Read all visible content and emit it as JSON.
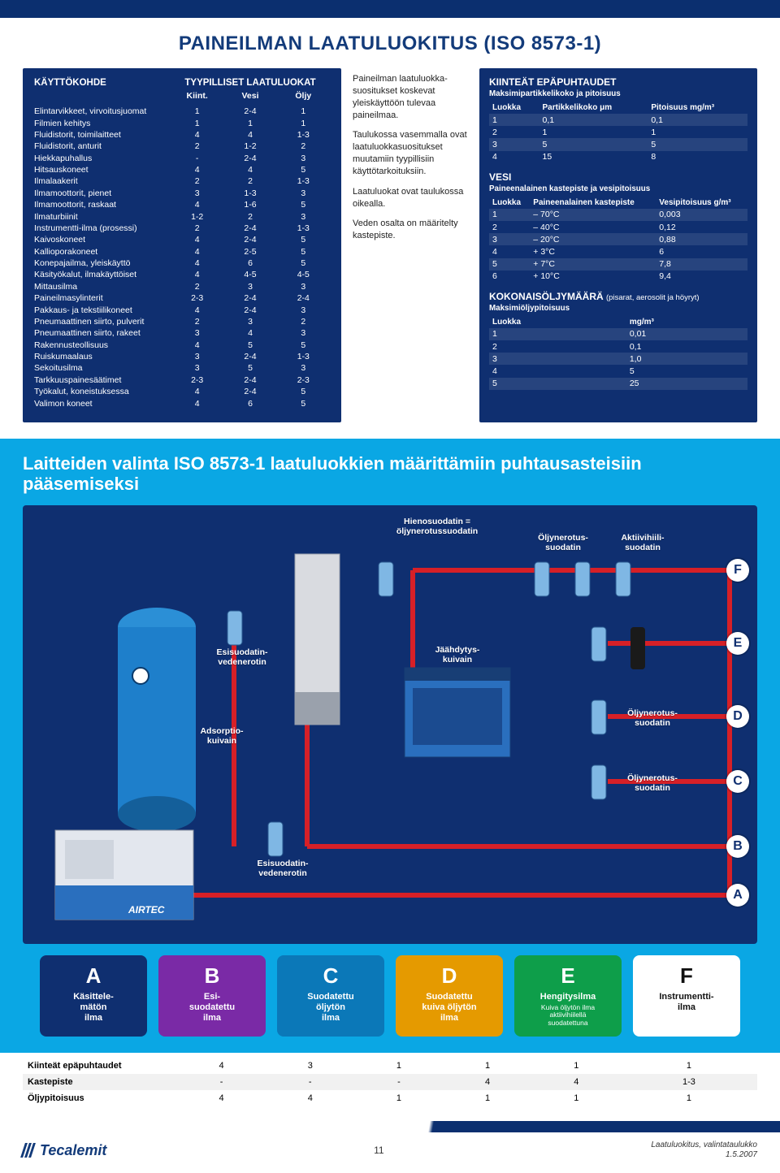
{
  "title": "PAINEILMAN LAATULUOKITUS (ISO 8573-1)",
  "usage_table": {
    "header_use": "KÄYTTÖKOHDE",
    "header_group": "TYYPILLISET LAATULUOKAT",
    "sub": [
      "Kiint.",
      "Vesi",
      "Öljy"
    ],
    "rows": [
      [
        "Elintarvikkeet, virvoitusjuomat",
        "1",
        "2-4",
        "1"
      ],
      [
        "Filmien kehitys",
        "1",
        "1",
        "1"
      ],
      [
        "Fluidistorit, toimilaitteet",
        "4",
        "4",
        "1-3"
      ],
      [
        "Fluidistorit, anturit",
        "2",
        "1-2",
        "2"
      ],
      [
        "Hiekkapuhallus",
        "-",
        "2-4",
        "3"
      ],
      [
        "Hitsauskoneet",
        "4",
        "4",
        "5"
      ],
      [
        "Ilmalaakerit",
        "2",
        "2",
        "1-3"
      ],
      [
        "Ilmamoottorit, pienet",
        "3",
        "1-3",
        "3"
      ],
      [
        "Ilmamoottorit, raskaat",
        "4",
        "1-6",
        "5"
      ],
      [
        "Ilmaturbiinit",
        "1-2",
        "2",
        "3"
      ],
      [
        "Instrumentti-ilma (prosessi)",
        "2",
        "2-4",
        "1-3"
      ],
      [
        "Kaivoskoneet",
        "4",
        "2-4",
        "5"
      ],
      [
        "Kallioporakoneet",
        "4",
        "2-5",
        "5"
      ],
      [
        "Konepajailma, yleiskäyttö",
        "4",
        "6",
        "5"
      ],
      [
        "Käsityökalut, ilmakäyttöiset",
        "4",
        "4-5",
        "4-5"
      ],
      [
        "Mittausilma",
        "2",
        "3",
        "3"
      ],
      [
        "Paineilmasylinterit",
        "2-3",
        "2-4",
        "2-4"
      ],
      [
        "Pakkaus- ja tekstiilikoneet",
        "4",
        "2-4",
        "3"
      ],
      [
        "Pneumaattinen siirto, pulverit",
        "2",
        "3",
        "2"
      ],
      [
        "Pneumaattinen siirto, rakeet",
        "3",
        "4",
        "3"
      ],
      [
        "Rakennusteollisuus",
        "4",
        "5",
        "5"
      ],
      [
        "Ruiskumaalaus",
        "3",
        "2-4",
        "1-3"
      ],
      [
        "Sekoitusilma",
        "3",
        "5",
        "3"
      ],
      [
        "Tarkkuuspainesäätimet",
        "2-3",
        "2-4",
        "2-3"
      ],
      [
        "Työkalut, koneistuksessa",
        "4",
        "2-4",
        "5"
      ],
      [
        "Valimon koneet",
        "4",
        "6",
        "5"
      ]
    ]
  },
  "middle_text": {
    "p1": "Paineilman laatuluokka­suositukset koskevat yleiskäyt­töön tulevaa paineilmaa.",
    "p2": "Taulukossa vasemmalla ovat laatuluokka­suositukset muutamiin tyypillisiin käyttötar­koituksiin.",
    "p3": "Laatuluokat ovat taulukossa oikealla.",
    "p4": "Veden osalta on määritelty kastepiste."
  },
  "fixed": {
    "title1": "KIINTEÄT EPÄPUHTAUDET",
    "sub1": "Maksimipartikkelikoko ja pitoisuus",
    "cols1": [
      "Luokka",
      "Partikkelikoko μm",
      "Pitoisuus mg/m³"
    ],
    "rows1": [
      [
        "1",
        "0,1",
        "0,1"
      ],
      [
        "2",
        "1",
        "1"
      ],
      [
        "3",
        "5",
        "5"
      ],
      [
        "4",
        "15",
        "8"
      ]
    ],
    "title2": "VESI",
    "sub2": "Paineenalainen kastepiste ja vesipitoisuus",
    "cols2": [
      "Luokka",
      "Paineenalainen kastepiste",
      "Vesipitoisuus g/m³"
    ],
    "rows2": [
      [
        "1",
        "– 70°C",
        "0,003"
      ],
      [
        "2",
        "– 40°C",
        "0,12"
      ],
      [
        "3",
        "– 20°C",
        "0,88"
      ],
      [
        "4",
        "+ 3°C",
        "6"
      ],
      [
        "5",
        "+ 7°C",
        "7,8"
      ],
      [
        "6",
        "+ 10°C",
        "9,4"
      ]
    ],
    "title3": "KOKONAISÖLJYMÄÄRÄ",
    "sub3a": "(pisarat, aerosolit ja höyryt)",
    "sub3": "Maksimiöljypitoisuus",
    "cols3": [
      "Luokka",
      "mg/m³"
    ],
    "rows3": [
      [
        "1",
        "0,01"
      ],
      [
        "2",
        "0,1"
      ],
      [
        "3",
        "1,0"
      ],
      [
        "4",
        "5"
      ],
      [
        "5",
        "25"
      ]
    ]
  },
  "lower_heading": "Laitteiden valinta ISO 8573-1 laatuluokkien määrittämiin puhtausasteisiin pääsemiseksi",
  "diag": {
    "labels": {
      "hieno": "Hienosuodatin =\nöljynerotussuodatin",
      "oljy1": "Öljynerotus-\nsuodatin",
      "aktiv": "Aktiivihiili-\nsuodatin",
      "esisuod1": "Esisuodatin-\nvedenerotin",
      "jaah": "Jäähdytys-\nkuivain",
      "adsorp": "Adsorptio-\nkuivain",
      "oljy2": "Öljynerotus-\nsuodatin",
      "oljy3": "Öljynerotus-\nsuodatin",
      "esisuod2": "Esisuodatin-\nvedenerotin"
    },
    "badges": [
      "F",
      "E",
      "D",
      "C",
      "B",
      "A"
    ],
    "pipe_color": "#d62027",
    "tank_color": "#1e7fcb",
    "bg": "#0f2f70"
  },
  "categories": [
    {
      "letter": "A",
      "label": "Käsittele-\nmätön\nilma",
      "color": "#0f2f70"
    },
    {
      "letter": "B",
      "label": "Esi-\nsuodatettu\nilma",
      "color": "#7a2aa6"
    },
    {
      "letter": "C",
      "label": "Suodatettu\nöljytön\nilma",
      "color": "#0b78b8"
    },
    {
      "letter": "D",
      "label": "Suodatettu\nkuiva öljytön\nilma",
      "color": "#e59a00"
    },
    {
      "letter": "E",
      "label": "Hengitysilma",
      "sub": "Kuiva öljytön ilma\naktiivihiilellä\nsuodatettuna",
      "color": "#0e9e4a"
    },
    {
      "letter": "F",
      "label": "Instrumentti-\nilma",
      "color": "#ffffff",
      "text": "#111"
    }
  ],
  "btable": {
    "rows": [
      {
        "label": "Kiinteät epäpuhtaudet",
        "vals": [
          "4",
          "3",
          "1",
          "1",
          "1",
          "1"
        ]
      },
      {
        "label": "Kastepiste",
        "vals": [
          "-",
          "-",
          "-",
          "4",
          "4",
          "1-3"
        ]
      },
      {
        "label": "Öljypitoisuus",
        "vals": [
          "4",
          "4",
          "1",
          "1",
          "1",
          "1"
        ]
      }
    ]
  },
  "footer": {
    "brand": "Tecalemit",
    "page": "11",
    "right1": "Laatuluokitus, valintataulukko",
    "right2": "1.5.2007"
  }
}
